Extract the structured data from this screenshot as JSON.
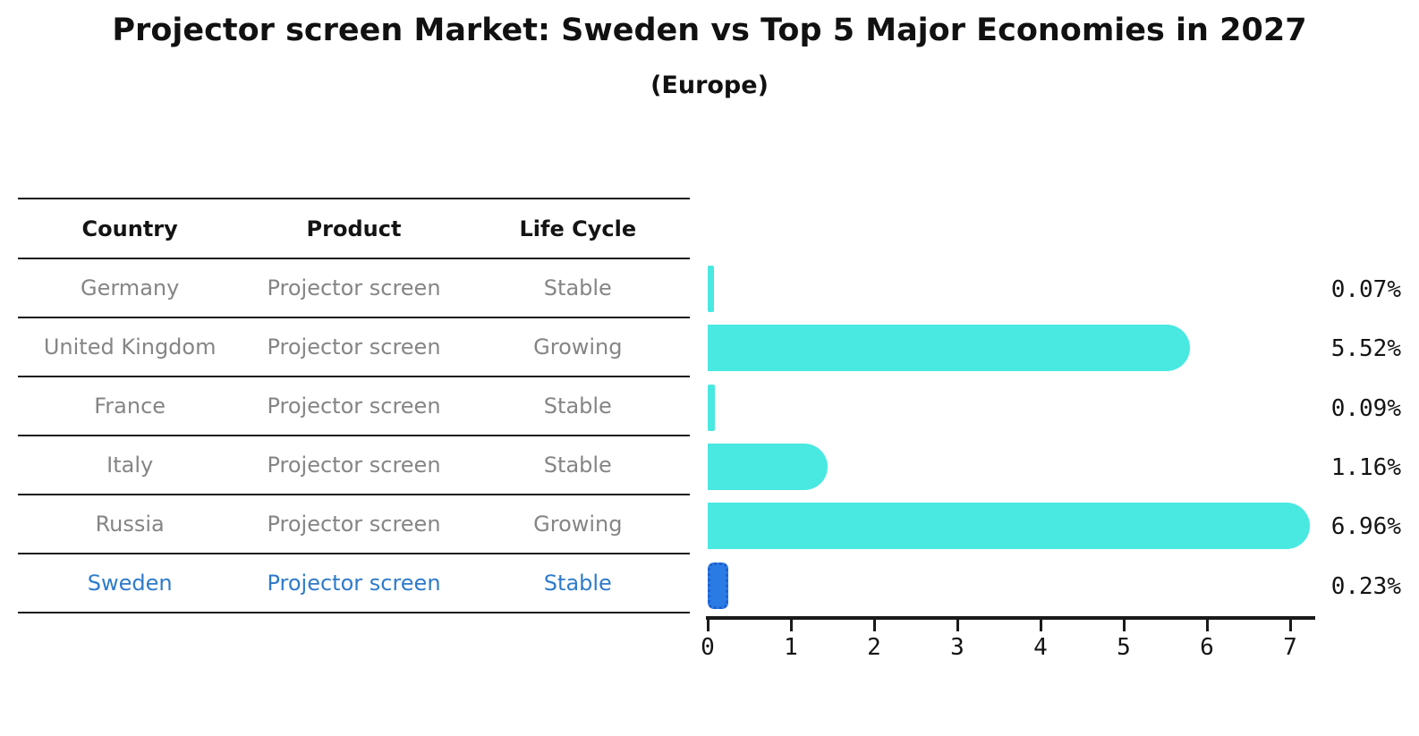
{
  "title": "Projector screen Market: Sweden vs Top 5 Major Economies in 2027",
  "subtitle": "(Europe)",
  "table": {
    "headers": [
      "Country",
      "Product",
      "Life Cycle"
    ],
    "rows": [
      {
        "country": "Germany",
        "product": "Projector screen",
        "life_cycle": "Stable",
        "highlight": false
      },
      {
        "country": "United Kingdom",
        "product": "Projector screen",
        "life_cycle": "Growing",
        "highlight": false
      },
      {
        "country": "France",
        "product": "Projector screen",
        "life_cycle": "Stable",
        "highlight": false
      },
      {
        "country": "Italy",
        "product": "Projector screen",
        "life_cycle": "Stable",
        "highlight": false
      },
      {
        "country": "Russia",
        "product": "Projector screen",
        "life_cycle": "Growing",
        "highlight": false
      },
      {
        "country": "Sweden",
        "product": "Projector screen",
        "life_cycle": "Stable",
        "highlight": true
      }
    ]
  },
  "chart_data": {
    "type": "bar",
    "orientation": "horizontal",
    "title": "Projector screen Market: Sweden vs Top 5 Major Economies in 2027 (Europe)",
    "categories": [
      "Germany",
      "United Kingdom",
      "France",
      "Italy",
      "Russia",
      "Sweden"
    ],
    "values": [
      0.07,
      5.52,
      0.09,
      1.16,
      6.96,
      0.23
    ],
    "value_labels": [
      "0.07%",
      "5.52%",
      "0.09%",
      "1.16%",
      "6.96%",
      "0.23%"
    ],
    "x_ticks": [
      "0",
      "1",
      "2",
      "3",
      "4",
      "5",
      "6",
      "7"
    ],
    "xlim": [
      0,
      7.3
    ],
    "grid": false,
    "legend": "none",
    "bar_color": "#49e8e1",
    "highlight_index": 5,
    "highlight_bar_color": "#2b7be5",
    "highlight_border_color": "#1e60d0",
    "highlight_text_color": "#2e7bcb"
  }
}
